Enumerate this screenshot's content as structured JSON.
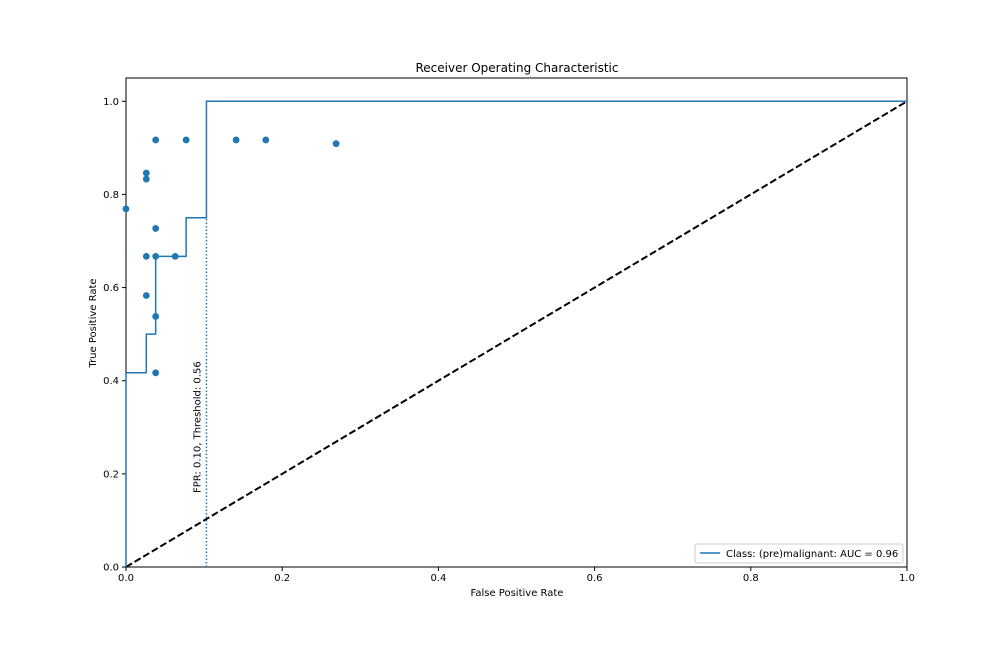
{
  "chart_data": {
    "type": "line",
    "title": "Receiver Operating Characteristic",
    "xlabel": "False Positive Rate",
    "ylabel": "True Positive Rate",
    "xlim": [
      0,
      1
    ],
    "ylim": [
      0,
      1.05
    ],
    "xticks": [
      0.0,
      0.2,
      0.4,
      0.6,
      0.8,
      1.0
    ],
    "yticks": [
      0.0,
      0.2,
      0.4,
      0.6,
      0.8,
      1.0
    ],
    "xtick_labels": [
      "0.0",
      "0.2",
      "0.4",
      "0.6",
      "0.8",
      "1.0"
    ],
    "ytick_labels": [
      "0.0",
      "0.2",
      "0.4",
      "0.6",
      "0.8",
      "1.0"
    ],
    "grid": false,
    "legend_position": "lower-right",
    "roc_curve": {
      "name": "Class: (pre)malignant: AUC = 0.96",
      "color": "#1f77b4",
      "x": [
        0.0,
        0.0,
        0.026,
        0.026,
        0.038,
        0.038,
        0.077,
        0.077,
        0.103,
        0.103,
        1.0
      ],
      "y": [
        0.0,
        0.417,
        0.417,
        0.5,
        0.5,
        0.667,
        0.667,
        0.75,
        0.75,
        1.0,
        1.0
      ]
    },
    "threshold_points": {
      "color": "#1f77b4",
      "x": [
        0.0,
        0.026,
        0.026,
        0.026,
        0.026,
        0.038,
        0.038,
        0.038,
        0.038,
        0.038,
        0.063,
        0.077,
        0.141,
        0.179,
        0.269
      ],
      "y": [
        0.769,
        0.846,
        0.833,
        0.667,
        0.583,
        0.917,
        0.727,
        0.667,
        0.538,
        0.417,
        0.667,
        0.917,
        0.917,
        0.917,
        0.909
      ]
    },
    "chance_line": {
      "color": "#000000",
      "x": [
        0,
        1
      ],
      "y": [
        0,
        1
      ]
    },
    "threshold_marker": {
      "x": 0.103,
      "color": "#1f77b4",
      "label": "FPR: 0.10, Threshold: 0.56"
    }
  }
}
